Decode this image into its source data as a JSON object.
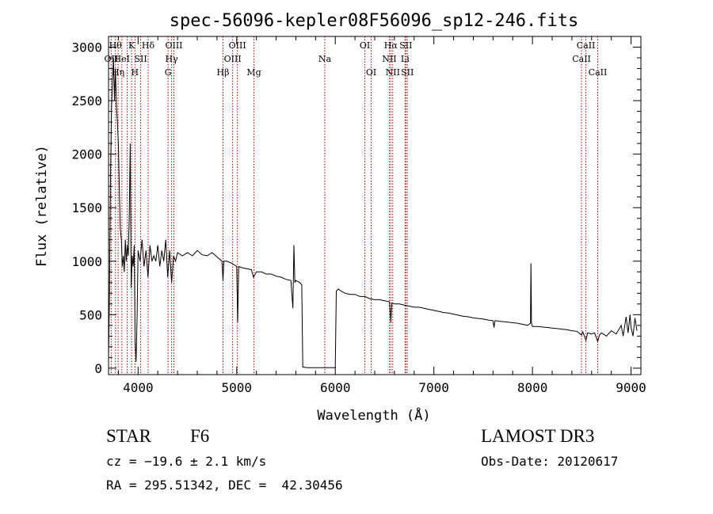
{
  "chart_data": {
    "type": "line",
    "title": "spec-56096-kepler08F56096_sp12-246.fits",
    "xlabel": "Wavelength (Å)",
    "ylabel": "Flux (relative)",
    "xlim": [
      3700,
      9100
    ],
    "ylim": [
      -60,
      3100
    ],
    "x_ticks": [
      4000,
      5000,
      6000,
      7000,
      8000,
      9000
    ],
    "x_tick_labels": [
      "4000",
      "5000",
      "6000",
      "7000",
      "8000",
      "9000"
    ],
    "y_ticks": [
      0,
      500,
      1000,
      1500,
      2000,
      2500,
      3000
    ],
    "y_tick_labels": [
      "0",
      "500",
      "1000",
      "1500",
      "2000",
      "2500",
      "3000"
    ],
    "line_color": "#000000",
    "marker_color": "#aa0000",
    "series": [
      {
        "name": "flux",
        "points": [
          [
            3700,
            100
          ],
          [
            3710,
            700
          ],
          [
            3720,
            1800
          ],
          [
            3730,
            2400
          ],
          [
            3740,
            2700
          ],
          [
            3750,
            2900
          ],
          [
            3760,
            2500
          ],
          [
            3770,
            2800
          ],
          [
            3780,
            2450
          ],
          [
            3790,
            2300
          ],
          [
            3800,
            2100
          ],
          [
            3810,
            1650
          ],
          [
            3820,
            1300
          ],
          [
            3830,
            1200
          ],
          [
            3840,
            950
          ],
          [
            3850,
            1050
          ],
          [
            3860,
            900
          ],
          [
            3870,
            1200
          ],
          [
            3880,
            1000
          ],
          [
            3890,
            1150
          ],
          [
            3900,
            1050
          ],
          [
            3910,
            1400
          ],
          [
            3920,
            2100
          ],
          [
            3930,
            750
          ],
          [
            3940,
            1050
          ],
          [
            3950,
            950
          ],
          [
            3960,
            1150
          ],
          [
            3970,
            250
          ],
          [
            3980,
            60
          ],
          [
            3990,
            500
          ],
          [
            4000,
            1100
          ],
          [
            4020,
            1000
          ],
          [
            4040,
            1200
          ],
          [
            4060,
            950
          ],
          [
            4080,
            1100
          ],
          [
            4100,
            850
          ],
          [
            4120,
            1150
          ],
          [
            4140,
            1000
          ],
          [
            4160,
            1050
          ],
          [
            4180,
            1000
          ],
          [
            4200,
            1150
          ],
          [
            4220,
            950
          ],
          [
            4240,
            1100
          ],
          [
            4260,
            1000
          ],
          [
            4280,
            1200
          ],
          [
            4300,
            850
          ],
          [
            4320,
            1100
          ],
          [
            4340,
            800
          ],
          [
            4360,
            1050
          ],
          [
            4380,
            1000
          ],
          [
            4400,
            1080
          ],
          [
            4450,
            1050
          ],
          [
            4500,
            1080
          ],
          [
            4550,
            1050
          ],
          [
            4600,
            1100
          ],
          [
            4650,
            1060
          ],
          [
            4700,
            1050
          ],
          [
            4750,
            1080
          ],
          [
            4800,
            1040
          ],
          [
            4850,
            1000
          ],
          [
            4861,
            820
          ],
          [
            4870,
            1000
          ],
          [
            4900,
            1000
          ],
          [
            4950,
            980
          ],
          [
            5000,
            950
          ],
          [
            5010,
            430
          ],
          [
            5020,
            950
          ],
          [
            5050,
            940
          ],
          [
            5100,
            930
          ],
          [
            5150,
            920
          ],
          [
            5170,
            850
          ],
          [
            5200,
            900
          ],
          [
            5250,
            900
          ],
          [
            5300,
            880
          ],
          [
            5350,
            880
          ],
          [
            5400,
            860
          ],
          [
            5450,
            850
          ],
          [
            5500,
            830
          ],
          [
            5550,
            820
          ],
          [
            5570,
            560
          ],
          [
            5580,
            1150
          ],
          [
            5590,
            800
          ],
          [
            5600,
            820
          ],
          [
            5640,
            800
          ],
          [
            5660,
            780
          ],
          [
            5670,
            10
          ],
          [
            5720,
            5
          ],
          [
            5800,
            5
          ],
          [
            5900,
            5
          ],
          [
            5980,
            5
          ],
          [
            6000,
            5
          ],
          [
            6010,
            720
          ],
          [
            6030,
            740
          ],
          [
            6060,
            720
          ],
          [
            6100,
            700
          ],
          [
            6150,
            690
          ],
          [
            6200,
            690
          ],
          [
            6250,
            670
          ],
          [
            6300,
            670
          ],
          [
            6350,
            650
          ],
          [
            6400,
            640
          ],
          [
            6450,
            640
          ],
          [
            6500,
            630
          ],
          [
            6550,
            620
          ],
          [
            6563,
            430
          ],
          [
            6575,
            610
          ],
          [
            6600,
            600
          ],
          [
            6650,
            600
          ],
          [
            6700,
            590
          ],
          [
            6750,
            580
          ],
          [
            6800,
            570
          ],
          [
            6850,
            570
          ],
          [
            6900,
            560
          ],
          [
            6950,
            550
          ],
          [
            7000,
            540
          ],
          [
            7050,
            530
          ],
          [
            7100,
            520
          ],
          [
            7150,
            515
          ],
          [
            7200,
            505
          ],
          [
            7250,
            495
          ],
          [
            7300,
            485
          ],
          [
            7350,
            480
          ],
          [
            7400,
            470
          ],
          [
            7450,
            465
          ],
          [
            7500,
            460
          ],
          [
            7550,
            450
          ],
          [
            7600,
            445
          ],
          [
            7610,
            380
          ],
          [
            7620,
            445
          ],
          [
            7650,
            440
          ],
          [
            7700,
            435
          ],
          [
            7750,
            430
          ],
          [
            7800,
            425
          ],
          [
            7850,
            420
          ],
          [
            7900,
            410
          ],
          [
            7950,
            400
          ],
          [
            7980,
            420
          ],
          [
            7985,
            980
          ],
          [
            7990,
            420
          ],
          [
            8000,
            390
          ],
          [
            8050,
            390
          ],
          [
            8100,
            385
          ],
          [
            8150,
            380
          ],
          [
            8200,
            375
          ],
          [
            8250,
            370
          ],
          [
            8300,
            365
          ],
          [
            8350,
            360
          ],
          [
            8400,
            350
          ],
          [
            8450,
            345
          ],
          [
            8498,
            310
          ],
          [
            8510,
            340
          ],
          [
            8542,
            260
          ],
          [
            8560,
            330
          ],
          [
            8600,
            320
          ],
          [
            8630,
            330
          ],
          [
            8662,
            250
          ],
          [
            8680,
            310
          ],
          [
            8700,
            330
          ],
          [
            8750,
            300
          ],
          [
            8800,
            350
          ],
          [
            8850,
            320
          ],
          [
            8900,
            400
          ],
          [
            8920,
            300
          ],
          [
            8950,
            480
          ],
          [
            8970,
            330
          ],
          [
            8990,
            500
          ],
          [
            9000,
            380
          ],
          [
            9020,
            300
          ],
          [
            9040,
            470
          ],
          [
            9060,
            350
          ]
        ]
      }
    ],
    "line_markers": [
      {
        "x": 3727,
        "label": "OII",
        "row": 1
      },
      {
        "x": 3770,
        "label": "Hθ",
        "row": 0
      },
      {
        "x": 3797,
        "label": "Hη",
        "row": 2
      },
      {
        "x": 3835,
        "label": "HeI",
        "row": 1
      },
      {
        "x": 3889,
        "label": "",
        "row": 0
      },
      {
        "x": 3934,
        "label": "K",
        "row": 0
      },
      {
        "x": 3968,
        "label": "H",
        "row": 2
      },
      {
        "x": 4026,
        "label": "SII",
        "row": 1
      },
      {
        "x": 4102,
        "label": "Hδ",
        "row": 0
      },
      {
        "x": 4304,
        "label": "G",
        "row": 2
      },
      {
        "x": 4340,
        "label": "Hγ",
        "row": 1
      },
      {
        "x": 4363,
        "label": "OIII",
        "row": 0
      },
      {
        "x": 4861,
        "label": "Hβ",
        "row": 2
      },
      {
        "x": 4959,
        "label": "OIII",
        "row": 1
      },
      {
        "x": 5007,
        "label": "OIII",
        "row": 0
      },
      {
        "x": 5175,
        "label": "Mg",
        "row": 2
      },
      {
        "x": 5893,
        "label": "Na",
        "row": 1
      },
      {
        "x": 6300,
        "label": "OI",
        "row": 0
      },
      {
        "x": 6364,
        "label": "OI",
        "row": 2
      },
      {
        "x": 6548,
        "label": "NII",
        "row": 1
      },
      {
        "x": 6563,
        "label": "Hα",
        "row": 0
      },
      {
        "x": 6583,
        "label": "NII",
        "row": 2
      },
      {
        "x": 6708,
        "label": "Li",
        "row": 1
      },
      {
        "x": 6716,
        "label": "SII",
        "row": 0
      },
      {
        "x": 6731,
        "label": "SII",
        "row": 2
      },
      {
        "x": 8498,
        "label": "CaII",
        "row": 1
      },
      {
        "x": 8542,
        "label": "CaII",
        "row": 0
      },
      {
        "x": 8662,
        "label": "CaII",
        "row": 2
      }
    ]
  },
  "info": {
    "object_class": "STAR",
    "subclass": "F6",
    "redshift_text": "cz = −19.6 ± 2.1 km/s",
    "coords_text": "RA = 295.51342, DEC =  42.30456",
    "survey": "LAMOST DR3",
    "obs_date": "Obs-Date: 20120617"
  }
}
